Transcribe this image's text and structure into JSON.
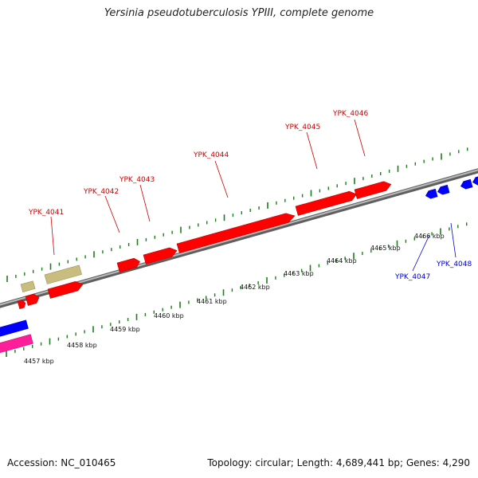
{
  "title": "Yersinia pseudotuberculosis YPIII, complete genome",
  "footer": {
    "accession": "Accession: NC_010465",
    "summary": "Topology: circular; Length: 4,689,441 bp; Genes: 4,290"
  },
  "colors": {
    "forward_gene": "#ff0000",
    "reverse_gene": "#0000ff",
    "rna_like": "#c8bd7f",
    "other_feature": "#ff1e9a",
    "tick": "#1a7f1a",
    "backbone": "#8a8a8a",
    "forward_label": "#cc0000",
    "reverse_label": "#0000cc"
  },
  "ruler_labels": [
    "4457 kbp",
    "4458 kbp",
    "4459 kbp",
    "4460 kbp",
    "4461 kbp",
    "4462 kbp",
    "4463 kbp",
    "4464 kbp",
    "4465 kbp",
    "4466 kbp"
  ],
  "gene_labels_forward": [
    "YPK_4041",
    "YPK_4042",
    "YPK_4043",
    "YPK_4044",
    "YPK_4045",
    "YPK_4046"
  ],
  "gene_labels_reverse": [
    "YPK_4047",
    "YPK_4048"
  ]
}
